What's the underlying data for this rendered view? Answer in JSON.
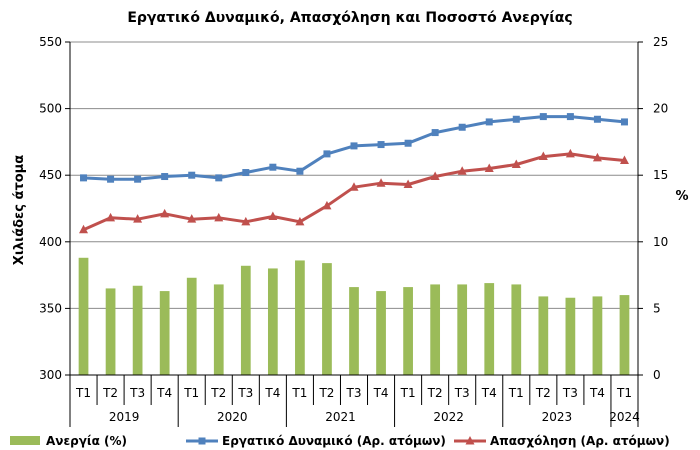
{
  "chart_data": {
    "type": "bar+line",
    "title": "Εργατικό Δυναμικό, Απασχόληση και Ποσοστό Ανεργίας",
    "ylabel_left": "Χιλιάδες άτομα",
    "ylabel_right": "%",
    "ylim_left": [
      300,
      550
    ],
    "ylim_right": [
      0,
      25
    ],
    "yticks_left": [
      "300",
      "350",
      "400",
      "450",
      "500",
      "550"
    ],
    "yticks_right": [
      "0",
      "5",
      "10",
      "15",
      "20",
      "25"
    ],
    "quarters": [
      "T1",
      "T2",
      "T3",
      "T4",
      "T1",
      "T2",
      "T3",
      "T4",
      "T1",
      "T2",
      "T3",
      "T4",
      "T1",
      "T2",
      "T3",
      "T4",
      "T1",
      "T2",
      "T3",
      "T4",
      "T1"
    ],
    "years": [
      "2019",
      "2020",
      "2021",
      "2022",
      "2023",
      "2024"
    ],
    "year_groups": [
      {
        "label": "2019",
        "start": 0,
        "end": 3
      },
      {
        "label": "2020",
        "start": 4,
        "end": 7
      },
      {
        "label": "2021",
        "start": 8,
        "end": 11
      },
      {
        "label": "2022",
        "start": 12,
        "end": 15
      },
      {
        "label": "2023",
        "start": 16,
        "end": 19
      },
      {
        "label": "2024",
        "start": 20,
        "end": 20
      }
    ],
    "series": [
      {
        "name": "Ανεργία (%)",
        "kind": "bar",
        "axis": "right",
        "color": "#9BBB59",
        "values": [
          8.8,
          6.5,
          6.7,
          6.3,
          7.3,
          6.8,
          8.2,
          8.0,
          8.6,
          8.4,
          6.6,
          6.3,
          6.6,
          6.8,
          6.8,
          6.9,
          6.8,
          5.9,
          5.8,
          5.9,
          6.0
        ]
      },
      {
        "name": "Εργατικό Δυναμικό (Αρ. ατόμων)",
        "kind": "line",
        "axis": "left",
        "marker": "square",
        "color": "#4F81BD",
        "values": [
          448,
          447,
          447,
          449,
          450,
          448,
          452,
          456,
          453,
          466,
          472,
          473,
          474,
          482,
          486,
          490,
          492,
          494,
          494,
          492,
          490
        ]
      },
      {
        "name": "Απασχόληση (Αρ. ατόμων)",
        "kind": "line",
        "axis": "left",
        "marker": "triangle",
        "color": "#C0504D",
        "values": [
          409,
          418,
          417,
          421,
          417,
          418,
          415,
          419,
          415,
          427,
          441,
          444,
          443,
          449,
          453,
          455,
          458,
          464,
          466,
          463,
          461
        ]
      }
    ],
    "gridlines": true,
    "legend_position": "bottom"
  }
}
